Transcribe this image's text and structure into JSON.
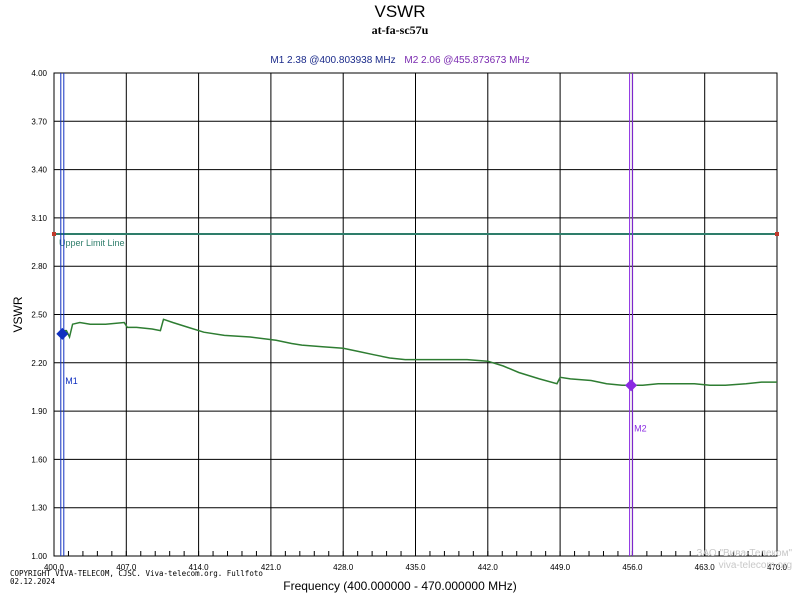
{
  "chart_data": {
    "type": "line",
    "title": "VSWR",
    "subtitle": "at-fa-sc57u",
    "xlabel": "Frequency (400.000000 - 470.000000 MHz)",
    "ylabel": "VSWR",
    "xlim": [
      400,
      470
    ],
    "ylim": [
      1.0,
      4.0
    ],
    "x_ticks": [
      "400.0",
      "407.0",
      "414.0",
      "421.0",
      "428.0",
      "435.0",
      "442.0",
      "449.0",
      "456.0",
      "463.0",
      "470.0"
    ],
    "y_ticks": [
      "1.00",
      "1.30",
      "1.60",
      "1.90",
      "2.20",
      "2.50",
      "2.80",
      "3.10",
      "3.40",
      "3.70",
      "4.00"
    ],
    "grid": true,
    "series": [
      {
        "color": "#2e7d32",
        "x": [
          400.6,
          400.8,
          401.2,
          401.5,
          401.8,
          402.5,
          403.5,
          405.0,
          406.8,
          407.1,
          408.0,
          409.5,
          410.3,
          410.6,
          411.5,
          413.0,
          414.5,
          416.5,
          419.0,
          421.5,
          423.0,
          424.0,
          426.0,
          428.0,
          429.5,
          431.0,
          432.5,
          434.0,
          436.0,
          438.0,
          440.0,
          442.0,
          443.5,
          445.0,
          447.0,
          448.7,
          449.0,
          450.0,
          452.0,
          453.5,
          455.0,
          456.0,
          457.0,
          458.5,
          460.0,
          462.0,
          463.5,
          465.0,
          467.0,
          468.5,
          470.0
        ],
        "y": [
          2.38,
          2.4,
          2.4,
          2.36,
          2.44,
          2.45,
          2.44,
          2.44,
          2.45,
          2.42,
          2.42,
          2.41,
          2.4,
          2.47,
          2.45,
          2.42,
          2.39,
          2.37,
          2.36,
          2.34,
          2.32,
          2.31,
          2.3,
          2.29,
          2.27,
          2.25,
          2.23,
          2.22,
          2.22,
          2.22,
          2.22,
          2.21,
          2.18,
          2.14,
          2.1,
          2.07,
          2.11,
          2.1,
          2.09,
          2.07,
          2.06,
          2.06,
          2.06,
          2.07,
          2.07,
          2.07,
          2.06,
          2.06,
          2.07,
          2.08,
          2.08
        ]
      }
    ],
    "limit_line": {
      "label": "Upper Limit Line",
      "value": 3.0,
      "color": "#2e7d6a"
    },
    "markers": [
      {
        "label": "M1",
        "x": 400.803938,
        "y": 2.38,
        "color": "#1030c0",
        "readout": "M1  2.38 @400.803938 MHz"
      },
      {
        "label": "M2",
        "x": 455.873673,
        "y": 2.06,
        "color": "#8a2be2",
        "readout": "M2  2.06 @455.873673 MHz"
      }
    ]
  },
  "copyright": "COPYRIGHT VIVA-TELECOM, CJSC. Viva-telecom.org. Fullfoto\n02.12.2024",
  "watermark": {
    "line1": "ЗАО \"Вива-Телеком\"",
    "line2": "viva-telecom.org"
  }
}
